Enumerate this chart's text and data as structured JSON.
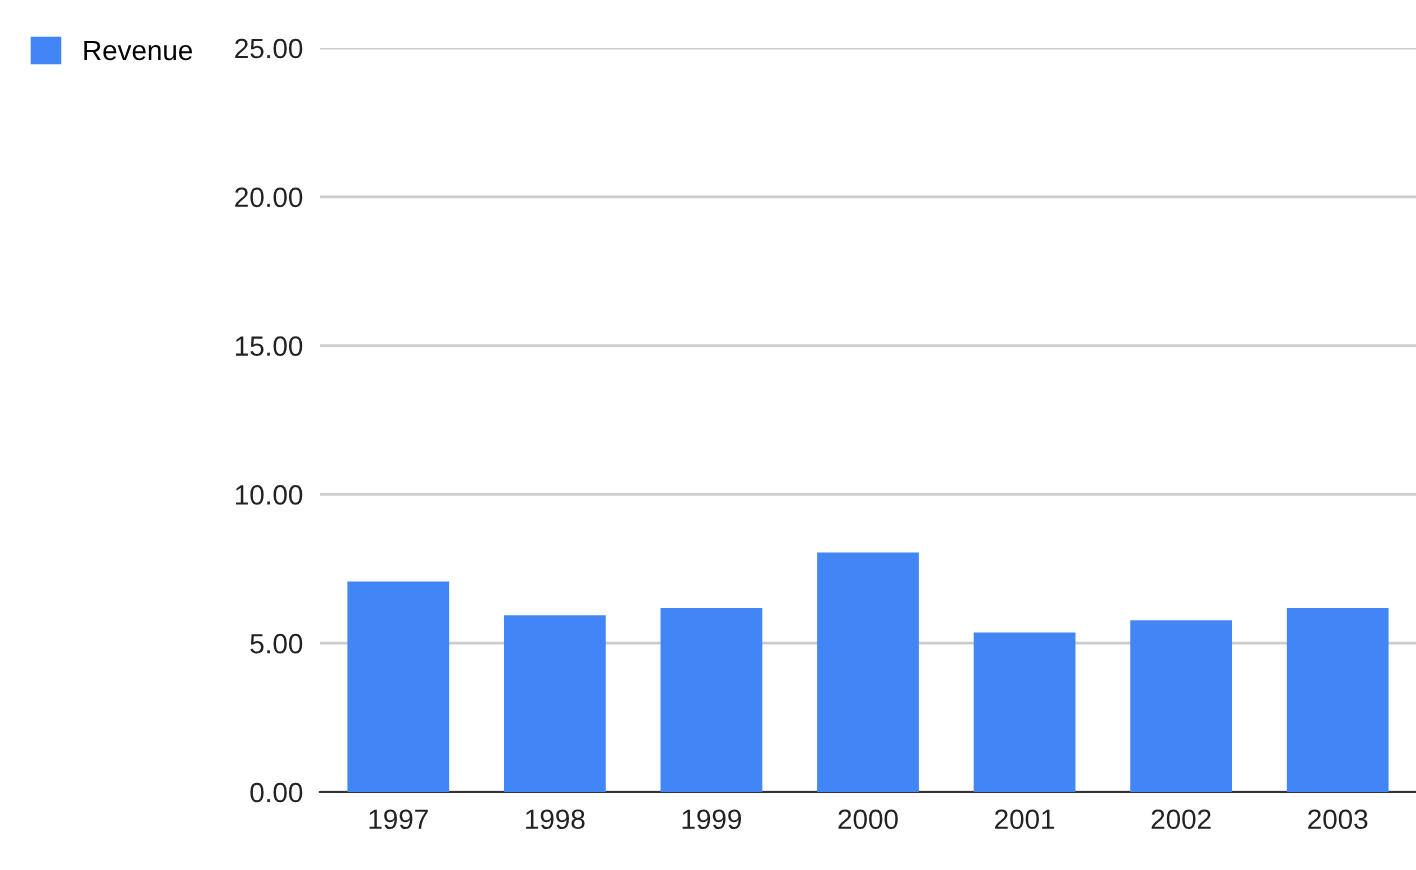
{
  "chart_data": {
    "type": "bar",
    "categories": [
      "1997",
      "1998",
      "1999",
      "2000",
      "2001",
      "2002",
      "2003"
    ],
    "series": [
      {
        "name": "Revenue",
        "color": "#4285f4",
        "values": [
          7.07,
          5.94,
          6.18,
          8.05,
          5.36,
          5.77,
          6.18
        ]
      }
    ],
    "ylim": [
      0,
      25
    ],
    "yticks": [
      {
        "value": 0,
        "label": "0.00"
      },
      {
        "value": 5,
        "label": "5.00"
      },
      {
        "value": 10,
        "label": "10.00"
      },
      {
        "value": 15,
        "label": "15.00"
      },
      {
        "value": 20,
        "label": "20.00"
      },
      {
        "value": 25,
        "label": "25.00"
      }
    ],
    "grid": "y",
    "legend": "top left"
  }
}
